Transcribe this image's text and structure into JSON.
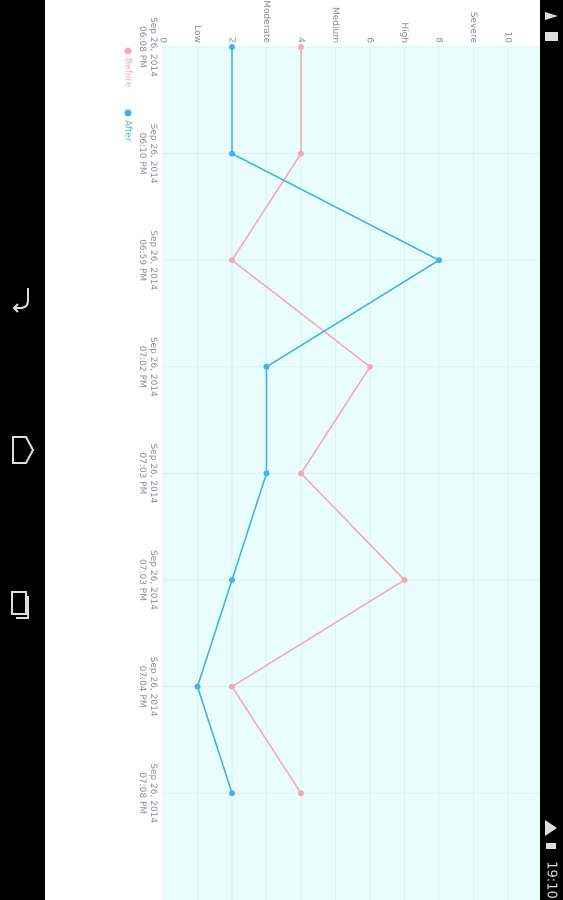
{
  "status_bar": {
    "time": "19:10"
  },
  "chart_data": {
    "type": "line",
    "categories": [
      "Sep 26, 2014 06:08 PM",
      "Sep 26, 2014 06:10 PM",
      "Sep 26, 2014 06:59 PM",
      "Sep 26, 2014 07:02 PM",
      "Sep 26, 2014 07:03 PM",
      "Sep 26, 2014 07:03 PM",
      "Sep 26, 2014 07:04 PM",
      "Sep 26, 2014 07:08 PM"
    ],
    "series": [
      {
        "name": "Before",
        "color": "#f7a8b8",
        "values": [
          4,
          4,
          2,
          6,
          4,
          7,
          2,
          4
        ]
      },
      {
        "name": "After",
        "color": "#3fb2e8",
        "values": [
          2,
          2,
          8,
          3,
          3,
          2,
          1,
          2
        ]
      }
    ],
    "ylim": [
      0,
      10
    ],
    "yticks": [
      0,
      {
        "value": 1,
        "label": "Low"
      },
      2,
      {
        "value": 3,
        "label": "Moderate"
      },
      4,
      {
        "value": 5,
        "label": "Medium"
      },
      6,
      {
        "value": 7,
        "label": "High"
      },
      8,
      {
        "value": 9,
        "label": "Severe"
      },
      10
    ],
    "grid": true
  }
}
